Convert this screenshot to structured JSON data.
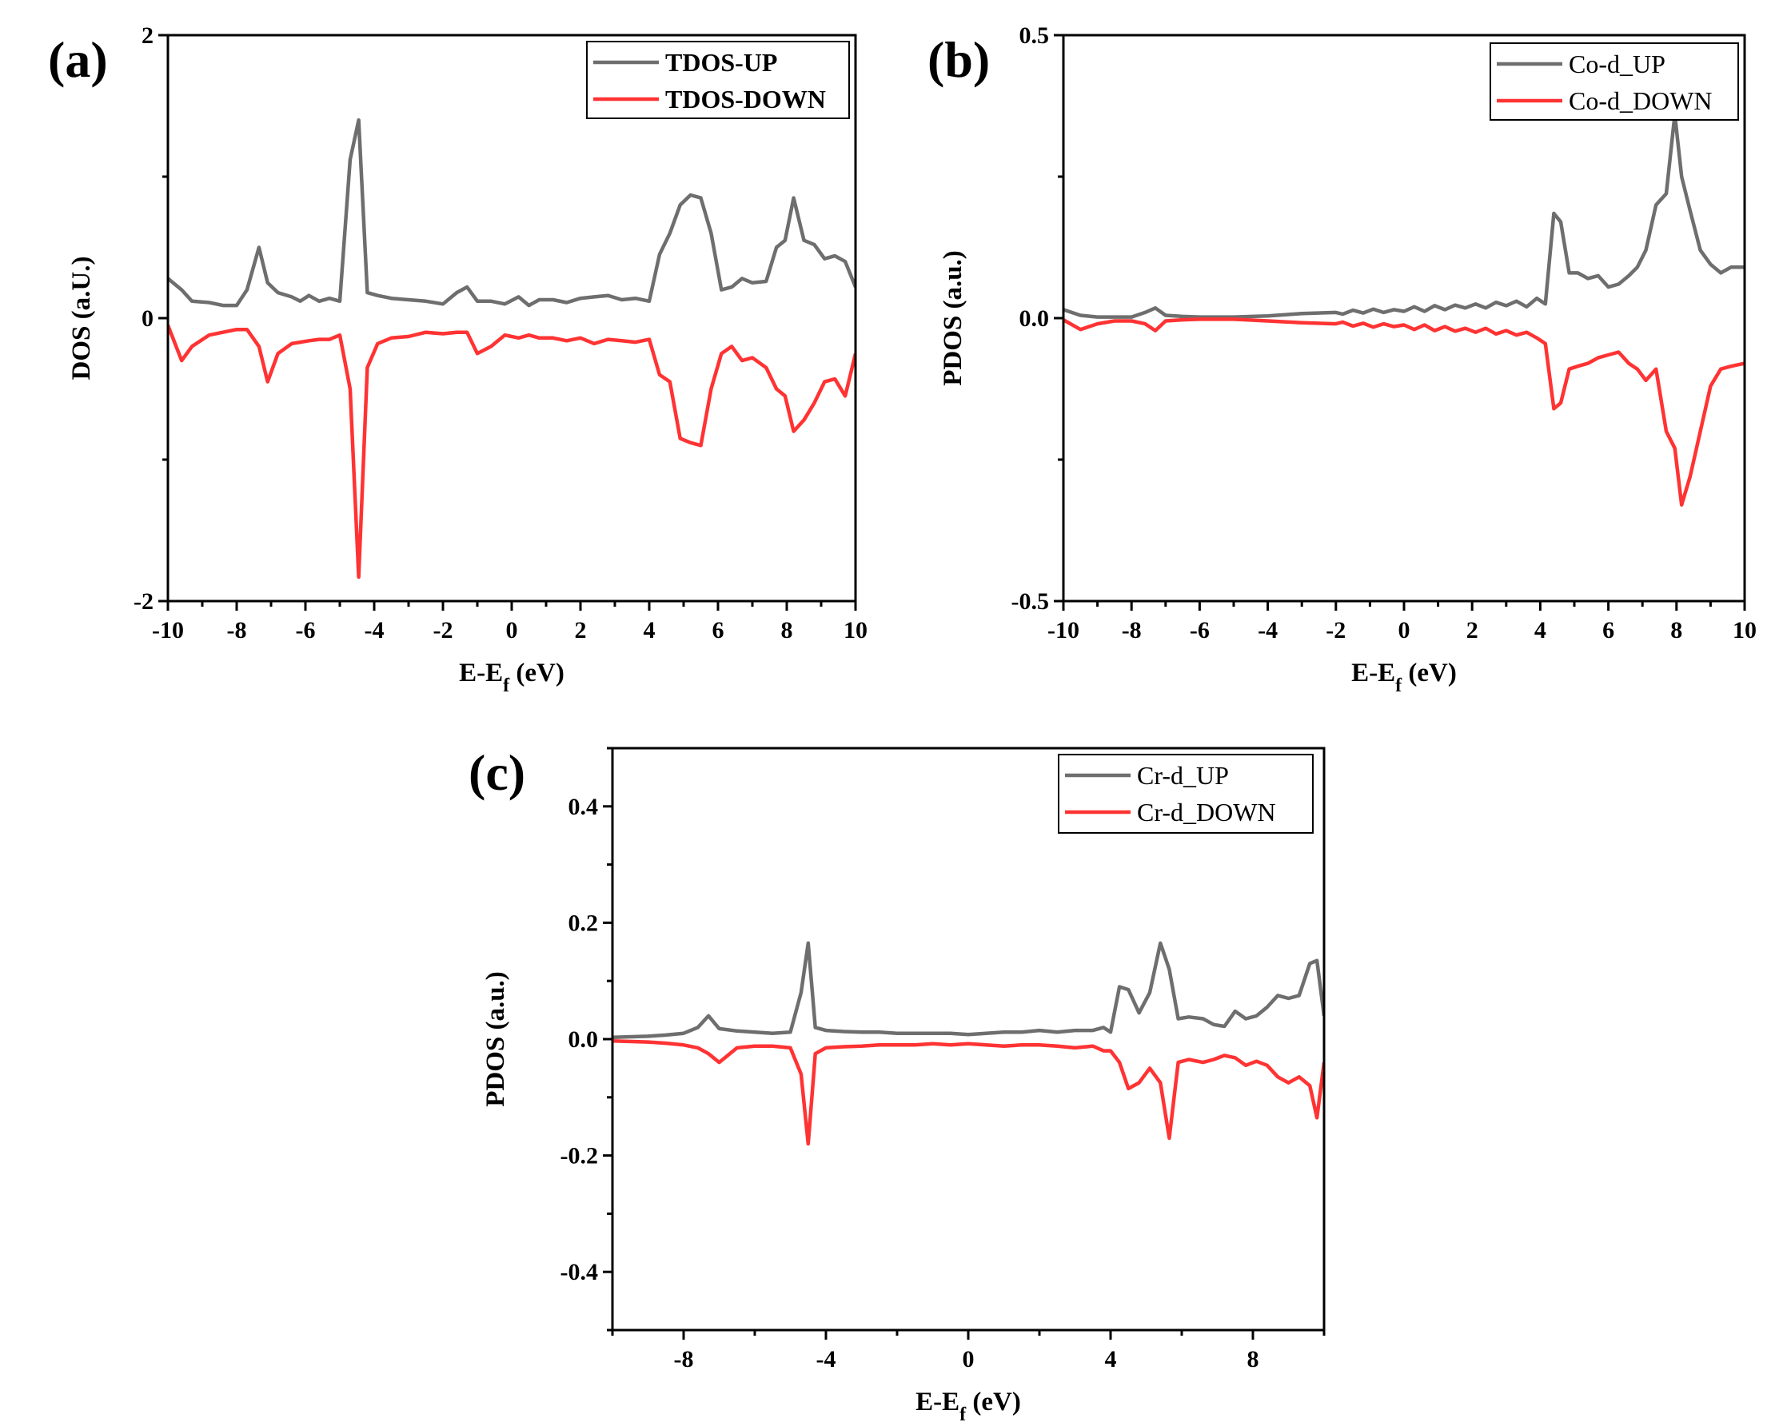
{
  "colors": {
    "up": "#6e6e6e",
    "down": "#ff3333",
    "axis": "#000000"
  },
  "chart_data": [
    {
      "panel_label": "(a)",
      "type": "line",
      "xlabel": "E-E",
      "xlabel_sub": "f",
      "xlabel_unit": " (eV)",
      "ylabel": "DOS (a.U.)",
      "xlim": [
        -10,
        10
      ],
      "ylim": [
        -2,
        2
      ],
      "xticks": [
        -10,
        -8,
        -6,
        -4,
        -2,
        0,
        2,
        4,
        6,
        8,
        10
      ],
      "xtick_labels": [
        "-10",
        "-8",
        "-6",
        "-4",
        "-2",
        "0",
        "2",
        "4",
        "6",
        "8",
        "10"
      ],
      "yticks": [
        -2,
        0,
        2
      ],
      "ytick_labels": [
        "-2",
        "0",
        "2"
      ],
      "legend_position": "top-right",
      "legend_bold": true,
      "series": [
        {
          "name": "TDOS-UP",
          "color_key": "up",
          "x": [
            -10,
            -9.6,
            -9.3,
            -8.8,
            -8.4,
            -8.0,
            -7.7,
            -7.35,
            -7.1,
            -6.8,
            -6.4,
            -6.15,
            -5.9,
            -5.6,
            -5.3,
            -5.0,
            -4.7,
            -4.45,
            -4.2,
            -3.9,
            -3.5,
            -3.0,
            -2.5,
            -2.0,
            -1.6,
            -1.3,
            -1.0,
            -0.6,
            -0.2,
            0.2,
            0.5,
            0.8,
            1.2,
            1.6,
            2.0,
            2.4,
            2.8,
            3.2,
            3.6,
            4.0,
            4.3,
            4.6,
            4.9,
            5.2,
            5.5,
            5.8,
            6.1,
            6.4,
            6.7,
            7.0,
            7.4,
            7.7,
            7.95,
            8.2,
            8.5,
            8.8,
            9.1,
            9.4,
            9.7,
            10.0
          ],
          "y": [
            0.28,
            0.2,
            0.12,
            0.11,
            0.09,
            0.09,
            0.2,
            0.5,
            0.25,
            0.18,
            0.15,
            0.12,
            0.16,
            0.12,
            0.14,
            0.12,
            1.12,
            1.4,
            0.18,
            0.16,
            0.14,
            0.13,
            0.12,
            0.1,
            0.18,
            0.22,
            0.12,
            0.12,
            0.1,
            0.15,
            0.09,
            0.13,
            0.13,
            0.11,
            0.14,
            0.15,
            0.16,
            0.13,
            0.14,
            0.12,
            0.45,
            0.6,
            0.8,
            0.87,
            0.85,
            0.6,
            0.2,
            0.22,
            0.28,
            0.25,
            0.26,
            0.5,
            0.55,
            0.85,
            0.55,
            0.52,
            0.42,
            0.44,
            0.4,
            0.22
          ]
        },
        {
          "name": "TDOS-DOWN",
          "color_key": "down",
          "x": [
            -10,
            -9.6,
            -9.3,
            -8.8,
            -8.4,
            -8.0,
            -7.7,
            -7.35,
            -7.1,
            -6.8,
            -6.4,
            -6.15,
            -5.9,
            -5.6,
            -5.3,
            -5.0,
            -4.7,
            -4.45,
            -4.2,
            -3.9,
            -3.5,
            -3.0,
            -2.5,
            -2.0,
            -1.6,
            -1.3,
            -1.0,
            -0.6,
            -0.2,
            0.2,
            0.5,
            0.8,
            1.2,
            1.6,
            2.0,
            2.4,
            2.8,
            3.2,
            3.6,
            4.0,
            4.3,
            4.6,
            4.9,
            5.2,
            5.5,
            5.8,
            6.1,
            6.4,
            6.7,
            7.0,
            7.4,
            7.7,
            7.95,
            8.2,
            8.5,
            8.8,
            9.1,
            9.4,
            9.7,
            10.0
          ],
          "y": [
            -0.05,
            -0.3,
            -0.2,
            -0.12,
            -0.1,
            -0.08,
            -0.08,
            -0.2,
            -0.45,
            -0.25,
            -0.18,
            -0.17,
            -0.16,
            -0.15,
            -0.15,
            -0.12,
            -0.5,
            -1.83,
            -0.35,
            -0.18,
            -0.14,
            -0.13,
            -0.1,
            -0.11,
            -0.1,
            -0.1,
            -0.25,
            -0.2,
            -0.12,
            -0.14,
            -0.12,
            -0.14,
            -0.14,
            -0.16,
            -0.14,
            -0.18,
            -0.15,
            -0.16,
            -0.17,
            -0.15,
            -0.4,
            -0.45,
            -0.85,
            -0.88,
            -0.9,
            -0.5,
            -0.25,
            -0.2,
            -0.3,
            -0.28,
            -0.35,
            -0.5,
            -0.55,
            -0.8,
            -0.72,
            -0.6,
            -0.45,
            -0.43,
            -0.55,
            -0.25
          ]
        }
      ]
    },
    {
      "panel_label": "(b)",
      "type": "line",
      "xlabel": "E-E",
      "xlabel_sub": "f",
      "xlabel_unit": " (eV)",
      "ylabel": "PDOS (a.u.)",
      "xlim": [
        -10,
        10
      ],
      "ylim": [
        -0.5,
        0.5
      ],
      "xticks": [
        -10,
        -8,
        -6,
        -4,
        -2,
        0,
        2,
        4,
        6,
        8,
        10
      ],
      "xtick_labels": [
        "-10",
        "-8",
        "-6",
        "-4",
        "-2",
        "0",
        "2",
        "4",
        "6",
        "8",
        "10"
      ],
      "yticks": [
        -0.5,
        0.0,
        0.5
      ],
      "ytick_labels": [
        "-0.5",
        "0.0",
        "0.5"
      ],
      "legend_position": "top-right",
      "legend_bold": false,
      "series": [
        {
          "name": "Co-d_UP",
          "color_key": "up",
          "x": [
            -10,
            -9.5,
            -9,
            -8.5,
            -8,
            -7.6,
            -7.3,
            -7.0,
            -6.5,
            -6,
            -5,
            -4,
            -3,
            -2,
            -1.8,
            -1.5,
            -1.2,
            -0.9,
            -0.6,
            -0.3,
            0,
            0.3,
            0.6,
            0.9,
            1.2,
            1.5,
            1.8,
            2.1,
            2.4,
            2.7,
            3.0,
            3.3,
            3.6,
            3.9,
            4.15,
            4.4,
            4.6,
            4.85,
            5.1,
            5.4,
            5.7,
            6.0,
            6.3,
            6.6,
            6.85,
            7.1,
            7.4,
            7.7,
            7.95,
            8.15,
            8.4,
            8.7,
            9.0,
            9.3,
            9.6,
            10.0
          ],
          "y": [
            0.015,
            0.005,
            0.002,
            0.002,
            0.002,
            0.01,
            0.018,
            0.005,
            0.003,
            0.002,
            0.002,
            0.004,
            0.008,
            0.01,
            0.007,
            0.014,
            0.009,
            0.016,
            0.01,
            0.015,
            0.012,
            0.02,
            0.012,
            0.022,
            0.015,
            0.023,
            0.018,
            0.025,
            0.018,
            0.028,
            0.022,
            0.03,
            0.02,
            0.035,
            0.025,
            0.185,
            0.17,
            0.08,
            0.08,
            0.07,
            0.075,
            0.055,
            0.06,
            0.075,
            0.09,
            0.12,
            0.2,
            0.22,
            0.36,
            0.25,
            0.19,
            0.12,
            0.095,
            0.08,
            0.09,
            0.09
          ]
        },
        {
          "name": "Co-d_DOWN",
          "color_key": "down",
          "x": [
            -10,
            -9.5,
            -9,
            -8.5,
            -8,
            -7.6,
            -7.3,
            -7.0,
            -6.5,
            -6,
            -5,
            -4,
            -3,
            -2,
            -1.8,
            -1.5,
            -1.2,
            -0.9,
            -0.6,
            -0.3,
            0,
            0.3,
            0.6,
            0.9,
            1.2,
            1.5,
            1.8,
            2.1,
            2.4,
            2.7,
            3.0,
            3.3,
            3.6,
            3.9,
            4.15,
            4.4,
            4.6,
            4.85,
            5.1,
            5.4,
            5.7,
            6.0,
            6.3,
            6.6,
            6.85,
            7.1,
            7.4,
            7.7,
            7.95,
            8.15,
            8.4,
            8.7,
            9.0,
            9.3,
            9.6,
            10.0
          ],
          "y": [
            -0.003,
            -0.02,
            -0.01,
            -0.005,
            -0.005,
            -0.01,
            -0.022,
            -0.005,
            -0.003,
            -0.002,
            -0.002,
            -0.005,
            -0.008,
            -0.01,
            -0.007,
            -0.014,
            -0.009,
            -0.016,
            -0.01,
            -0.015,
            -0.012,
            -0.02,
            -0.012,
            -0.022,
            -0.015,
            -0.023,
            -0.018,
            -0.025,
            -0.018,
            -0.028,
            -0.022,
            -0.03,
            -0.025,
            -0.035,
            -0.045,
            -0.16,
            -0.15,
            -0.09,
            -0.085,
            -0.08,
            -0.07,
            -0.065,
            -0.06,
            -0.08,
            -0.09,
            -0.11,
            -0.09,
            -0.2,
            -0.23,
            -0.33,
            -0.28,
            -0.2,
            -0.12,
            -0.09,
            -0.085,
            -0.08
          ]
        }
      ]
    },
    {
      "panel_label": "(c)",
      "type": "line",
      "xlabel": "E-E",
      "xlabel_sub": "f",
      "xlabel_unit": " (eV)",
      "ylabel": "PDOS (a.u.)",
      "xlim": [
        -10,
        10
      ],
      "ylim": [
        -0.5,
        0.5
      ],
      "xticks": [
        -8,
        -4,
        0,
        4,
        8
      ],
      "xtick_labels": [
        "-8",
        "-4",
        "0",
        "4",
        "8"
      ],
      "yticks": [
        -0.4,
        -0.2,
        0.0,
        0.2,
        0.4
      ],
      "ytick_labels": [
        "-0.4",
        "-0.2",
        "0.0",
        "0.2",
        "0.4"
      ],
      "legend_position": "top-right",
      "legend_bold": false,
      "series": [
        {
          "name": "Cr-d_UP",
          "color_key": "up",
          "x": [
            -10,
            -9,
            -8.5,
            -8,
            -7.6,
            -7.3,
            -7.0,
            -6.5,
            -6.0,
            -5.5,
            -5.0,
            -4.7,
            -4.5,
            -4.3,
            -4.0,
            -3.5,
            -3.0,
            -2.5,
            -2.0,
            -1.5,
            -1.0,
            -0.5,
            0,
            0.5,
            1.0,
            1.5,
            2.0,
            2.5,
            3.0,
            3.5,
            3.8,
            4.0,
            4.25,
            4.5,
            4.8,
            5.1,
            5.4,
            5.65,
            5.9,
            6.2,
            6.6,
            6.9,
            7.2,
            7.5,
            7.8,
            8.1,
            8.4,
            8.7,
            9.0,
            9.3,
            9.6,
            9.8,
            10.0
          ],
          "y": [
            0.003,
            0.005,
            0.007,
            0.01,
            0.02,
            0.04,
            0.018,
            0.014,
            0.012,
            0.01,
            0.012,
            0.08,
            0.165,
            0.02,
            0.015,
            0.013,
            0.012,
            0.012,
            0.01,
            0.01,
            0.01,
            0.01,
            0.008,
            0.01,
            0.012,
            0.012,
            0.015,
            0.012,
            0.015,
            0.015,
            0.02,
            0.012,
            0.09,
            0.085,
            0.045,
            0.08,
            0.165,
            0.12,
            0.035,
            0.038,
            0.035,
            0.025,
            0.022,
            0.048,
            0.035,
            0.04,
            0.055,
            0.075,
            0.07,
            0.075,
            0.13,
            0.135,
            0.04
          ]
        },
        {
          "name": "Cr-d_DOWN",
          "color_key": "down",
          "x": [
            -10,
            -9,
            -8.5,
            -8,
            -7.6,
            -7.3,
            -7.0,
            -6.5,
            -6.0,
            -5.5,
            -5.0,
            -4.7,
            -4.5,
            -4.3,
            -4.0,
            -3.5,
            -3.0,
            -2.5,
            -2.0,
            -1.5,
            -1.0,
            -0.5,
            0,
            0.5,
            1.0,
            1.5,
            2.0,
            2.5,
            3.0,
            3.5,
            3.8,
            4.0,
            4.25,
            4.5,
            4.8,
            5.1,
            5.4,
            5.65,
            5.9,
            6.2,
            6.6,
            6.9,
            7.2,
            7.5,
            7.8,
            8.1,
            8.4,
            8.7,
            9.0,
            9.3,
            9.6,
            9.8,
            10.0
          ],
          "y": [
            -0.003,
            -0.005,
            -0.007,
            -0.01,
            -0.015,
            -0.025,
            -0.04,
            -0.015,
            -0.012,
            -0.012,
            -0.015,
            -0.06,
            -0.18,
            -0.025,
            -0.015,
            -0.013,
            -0.012,
            -0.01,
            -0.01,
            -0.01,
            -0.008,
            -0.01,
            -0.008,
            -0.01,
            -0.012,
            -0.01,
            -0.01,
            -0.012,
            -0.015,
            -0.012,
            -0.02,
            -0.02,
            -0.04,
            -0.085,
            -0.075,
            -0.05,
            -0.075,
            -0.17,
            -0.04,
            -0.035,
            -0.04,
            -0.035,
            -0.028,
            -0.032,
            -0.045,
            -0.038,
            -0.045,
            -0.065,
            -0.075,
            -0.065,
            -0.08,
            -0.135,
            -0.04
          ]
        }
      ]
    }
  ]
}
